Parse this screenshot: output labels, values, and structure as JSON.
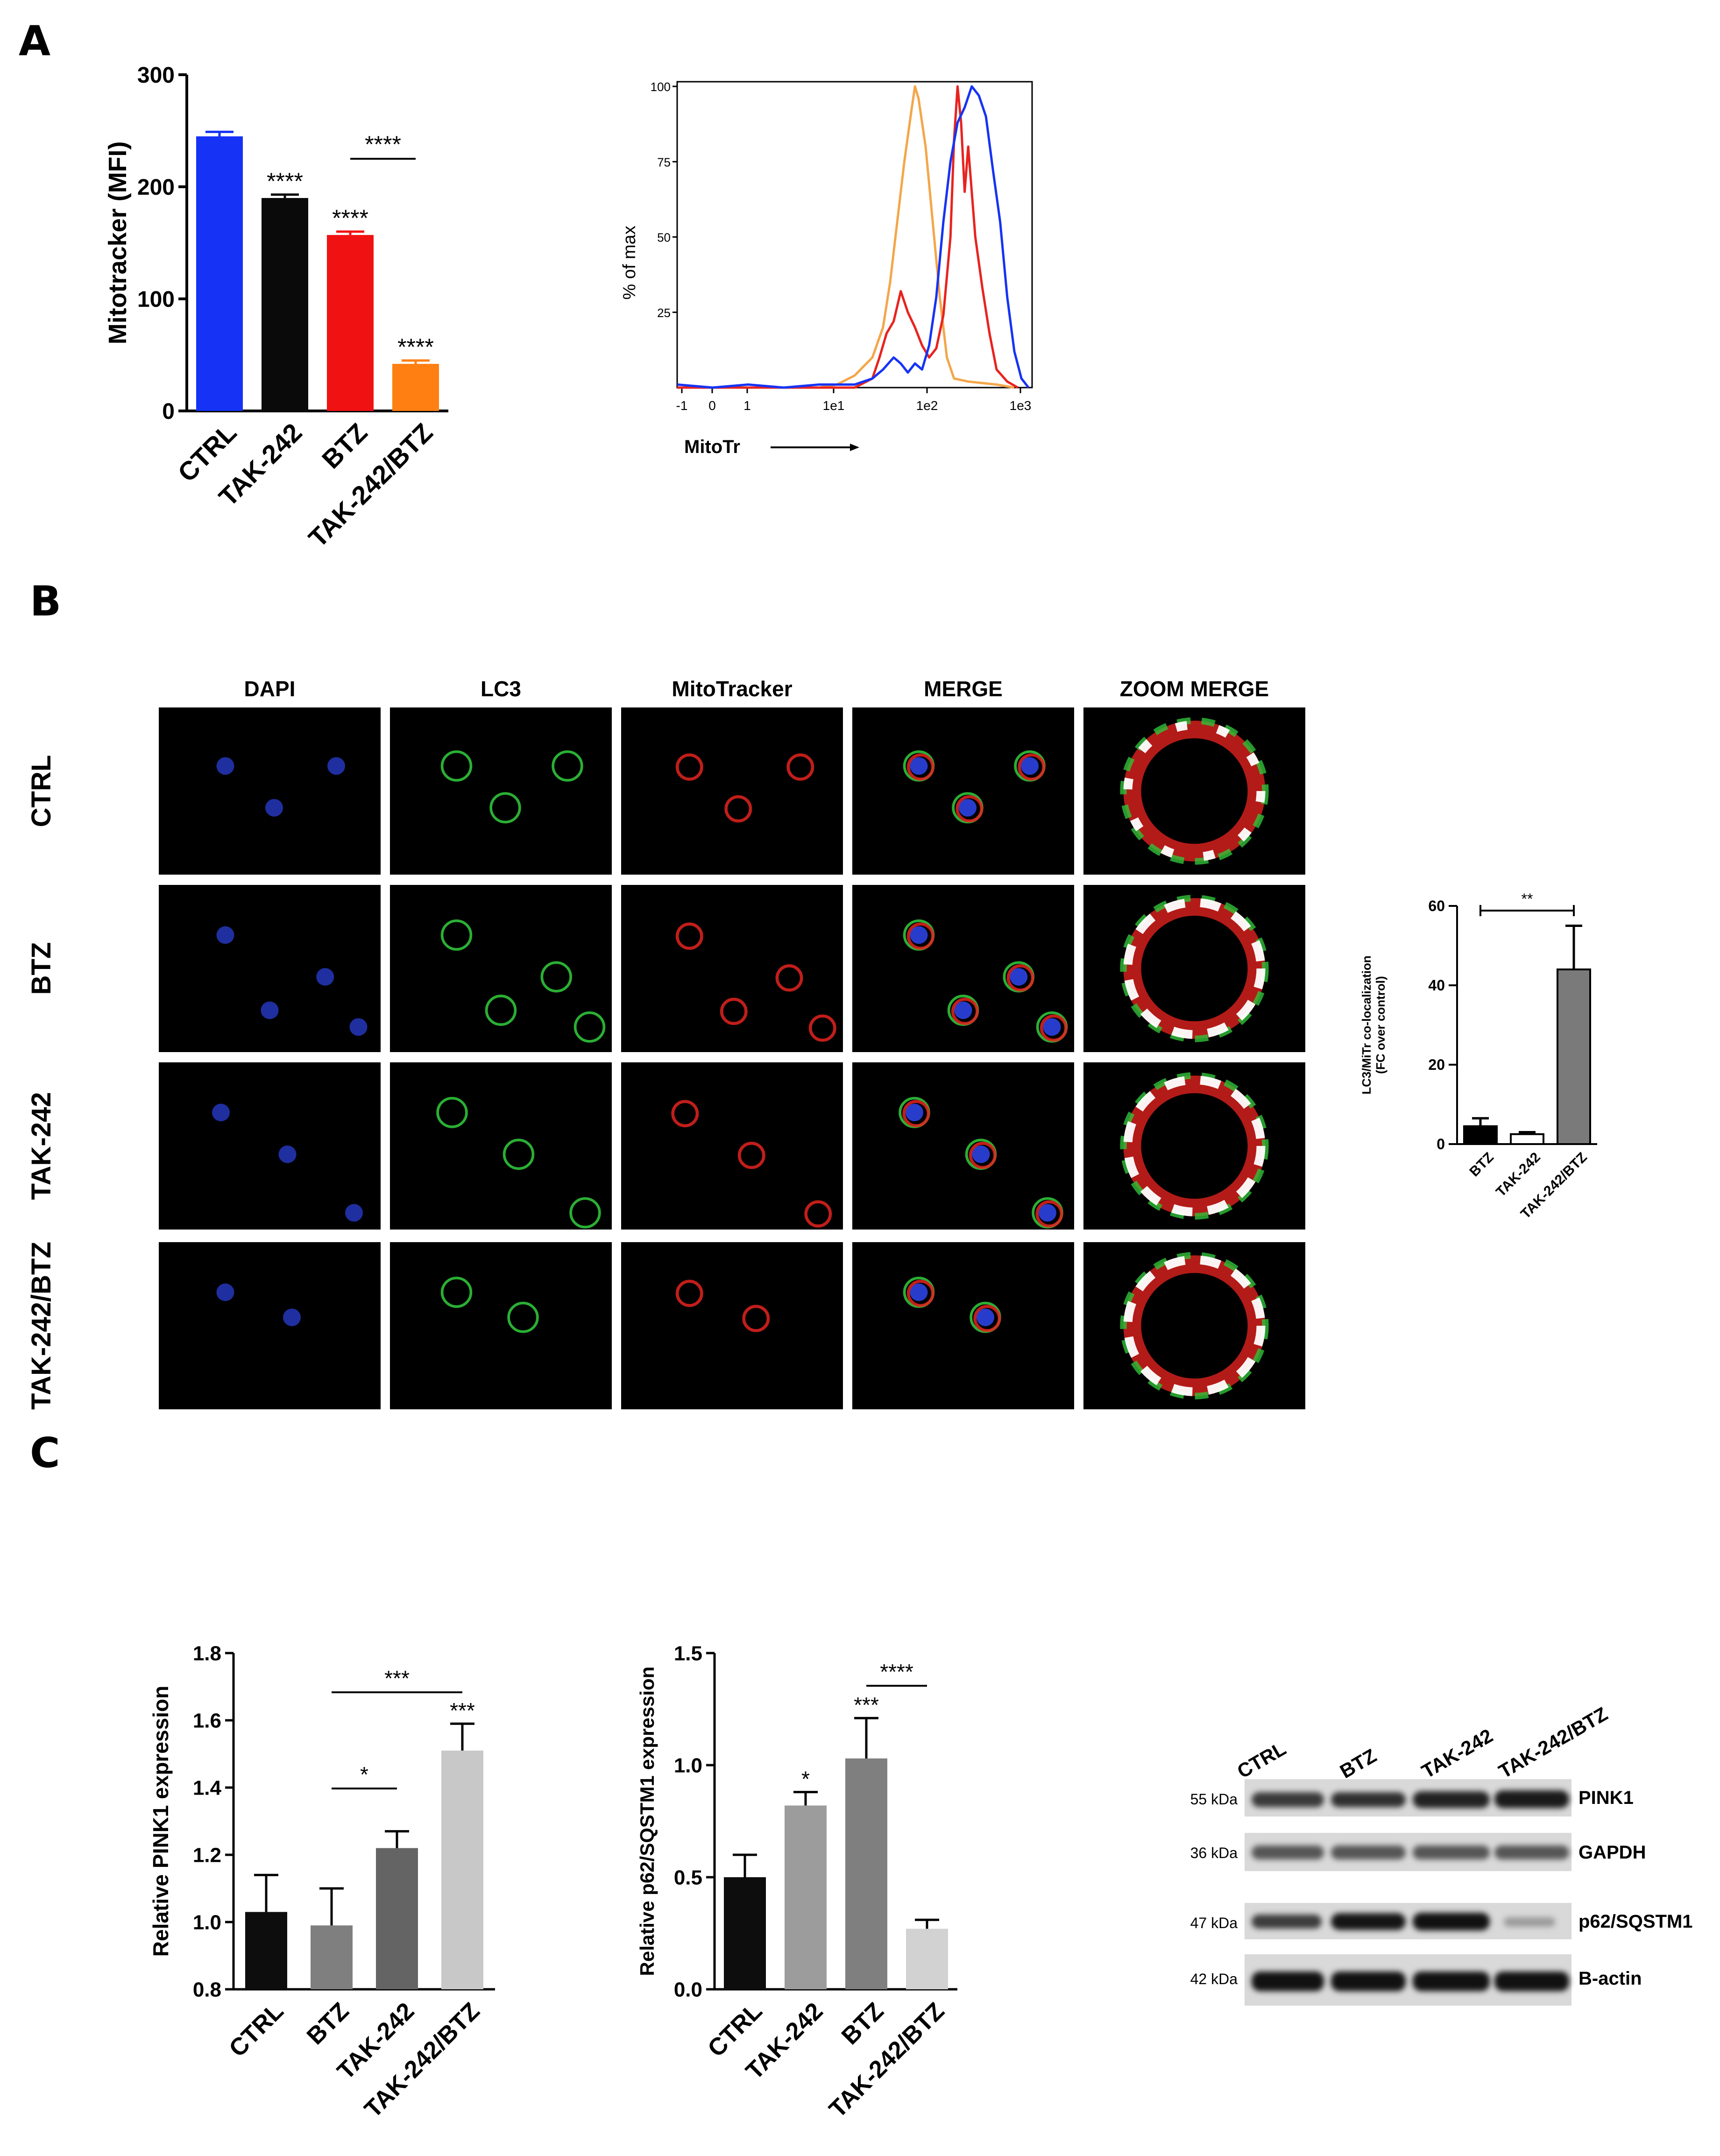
{
  "panels": {
    "a": "A",
    "b": "B",
    "c": "C"
  },
  "panelA": {
    "bar_chart": {
      "type": "bar",
      "ylabel": "Mitotracker (MFI)",
      "ylim": [
        0,
        300
      ],
      "yticks": [
        "0",
        "100",
        "200",
        "300"
      ],
      "categories": [
        "CTRL",
        "TAK-242",
        "BTZ",
        "TAK-242/BTZ"
      ],
      "values": [
        245,
        190,
        157,
        42
      ],
      "errors": [
        4,
        3,
        3,
        3
      ],
      "colors": [
        "#1633f5",
        "#0a0a0a",
        "#f01212",
        "#ff7f12"
      ],
      "significance": [
        "",
        "****",
        "****",
        "****"
      ],
      "bracket": {
        "from": 2,
        "to": 3,
        "label": "****"
      }
    },
    "histogram": {
      "type": "line",
      "ylabel": "% of max",
      "xlabel": "MitoTr",
      "yticks": [
        "25",
        "50",
        "75",
        "100"
      ],
      "xticks": [
        "-1",
        "0",
        "1",
        "1e1",
        "1e2",
        "1e3"
      ],
      "series": [
        {
          "color": "#f4a64a",
          "points": [
            [
              0,
              0
            ],
            [
              40,
              0
            ],
            [
              45,
              1
            ],
            [
              50,
              4
            ],
            [
              55,
              10
            ],
            [
              58,
              20
            ],
            [
              60,
              35
            ],
            [
              62,
              55
            ],
            [
              64,
              75
            ],
            [
              66,
              92
            ],
            [
              67,
              100
            ],
            [
              68,
              96
            ],
            [
              70,
              80
            ],
            [
              72,
              55
            ],
            [
              74,
              30
            ],
            [
              76,
              10
            ],
            [
              78,
              3
            ],
            [
              82,
              2
            ],
            [
              90,
              1
            ],
            [
              95,
              0
            ]
          ]
        },
        {
          "color": "#e8231f",
          "points": [
            [
              0,
              0
            ],
            [
              50,
              0
            ],
            [
              55,
              3
            ],
            [
              57,
              10
            ],
            [
              59,
              18
            ],
            [
              61,
              22
            ],
            [
              63,
              32
            ],
            [
              65,
              25
            ],
            [
              67,
              20
            ],
            [
              69,
              14
            ],
            [
              71,
              10
            ],
            [
              73,
              13
            ],
            [
              75,
              24
            ],
            [
              77,
              50
            ],
            [
              78,
              82
            ],
            [
              79,
              100
            ],
            [
              80,
              88
            ],
            [
              81,
              65
            ],
            [
              82,
              80
            ],
            [
              84,
              50
            ],
            [
              86,
              33
            ],
            [
              88,
              18
            ],
            [
              90,
              6
            ],
            [
              93,
              2
            ],
            [
              96,
              0
            ]
          ]
        },
        {
          "color": "#1633f5",
          "points": [
            [
              0,
              1
            ],
            [
              10,
              0
            ],
            [
              20,
              1
            ],
            [
              30,
              0
            ],
            [
              40,
              1
            ],
            [
              50,
              1
            ],
            [
              55,
              3
            ],
            [
              58,
              6
            ],
            [
              61,
              10
            ],
            [
              63,
              8
            ],
            [
              65,
              5
            ],
            [
              67,
              8
            ],
            [
              69,
              6
            ],
            [
              71,
              14
            ],
            [
              73,
              30
            ],
            [
              75,
              55
            ],
            [
              77,
              75
            ],
            [
              79,
              88
            ],
            [
              81,
              93
            ],
            [
              83,
              100
            ],
            [
              85,
              97
            ],
            [
              87,
              90
            ],
            [
              89,
              72
            ],
            [
              91,
              55
            ],
            [
              93,
              30
            ],
            [
              95,
              12
            ],
            [
              97,
              3
            ],
            [
              99,
              0
            ]
          ]
        }
      ]
    }
  },
  "panelB": {
    "columns": [
      "DAPI",
      "LC3",
      "MitoTracker",
      "MERGE",
      "ZOOM MERGE"
    ],
    "rows": [
      "CTRL",
      "BTZ",
      "TAK-242",
      "TAK-242/BTZ"
    ],
    "coloc_chart": {
      "type": "bar",
      "ylabel": "LC3/MiTr co-localization",
      "ylabel2": "(FC over control)",
      "ylim": [
        0,
        60
      ],
      "yticks": [
        "0",
        "20",
        "40",
        "60"
      ],
      "categories": [
        "BTZ",
        "TAK-242",
        "TAK-242/BTZ"
      ],
      "values": [
        4.5,
        2.5,
        44
      ],
      "errors": [
        2,
        0.5,
        11
      ],
      "fills": [
        "#000000",
        "#ffffff",
        "#7a7a7a"
      ],
      "bracket": {
        "from": 0,
        "to": 2,
        "label": "**"
      }
    }
  },
  "panelC": {
    "pink1_chart": {
      "type": "bar",
      "ylabel": "Relative PINK1 expression",
      "ylim": [
        0.8,
        1.8
      ],
      "yticks": [
        "0.8",
        "1.0",
        "1.2",
        "1.4",
        "1.6",
        "1.8"
      ],
      "categories": [
        "CTRL",
        "BTZ",
        "TAK-242",
        "TAK-242/BTZ"
      ],
      "values": [
        1.03,
        0.99,
        1.22,
        1.51
      ],
      "errors": [
        0.11,
        0.11,
        0.05,
        0.08
      ],
      "colors": [
        "#0d0d0d",
        "#7f7f7f",
        "#646464",
        "#c8c8c8"
      ],
      "significance": [
        "",
        "",
        "",
        "***"
      ],
      "brackets": [
        {
          "from": 1,
          "to": 2,
          "label": "*"
        },
        {
          "from": 1,
          "to": 3,
          "label": "***"
        }
      ]
    },
    "p62_chart": {
      "type": "bar",
      "ylabel": "Relative p62/SQSTM1 expression",
      "ylim": [
        0,
        1.5
      ],
      "yticks": [
        "0.0",
        "0.5",
        "1.0",
        "1.5"
      ],
      "categories": [
        "CTRL",
        "TAK-242",
        "BTZ",
        "TAK-242/BTZ"
      ],
      "values": [
        0.5,
        0.82,
        1.03,
        0.27
      ],
      "errors": [
        0.1,
        0.06,
        0.18,
        0.04
      ],
      "colors": [
        "#0d0d0d",
        "#9c9c9c",
        "#7f7f7f",
        "#d2d2d2"
      ],
      "significance": [
        "",
        "*",
        "***",
        ""
      ],
      "brackets": [
        {
          "from": 2,
          "to": 3,
          "label": "****"
        }
      ]
    },
    "blot": {
      "lanes": [
        "CTRL",
        "BTZ",
        "TAK-242",
        "TAK-242/BTZ"
      ],
      "rows": [
        {
          "kda": "55 kDa",
          "protein": "PINK1"
        },
        {
          "kda": "36 kDa",
          "protein": "GAPDH"
        },
        {
          "kda": "47 kDa",
          "protein": "p62/SQSTM1"
        },
        {
          "kda": "42 kDa",
          "protein": "B-actin"
        }
      ]
    }
  }
}
